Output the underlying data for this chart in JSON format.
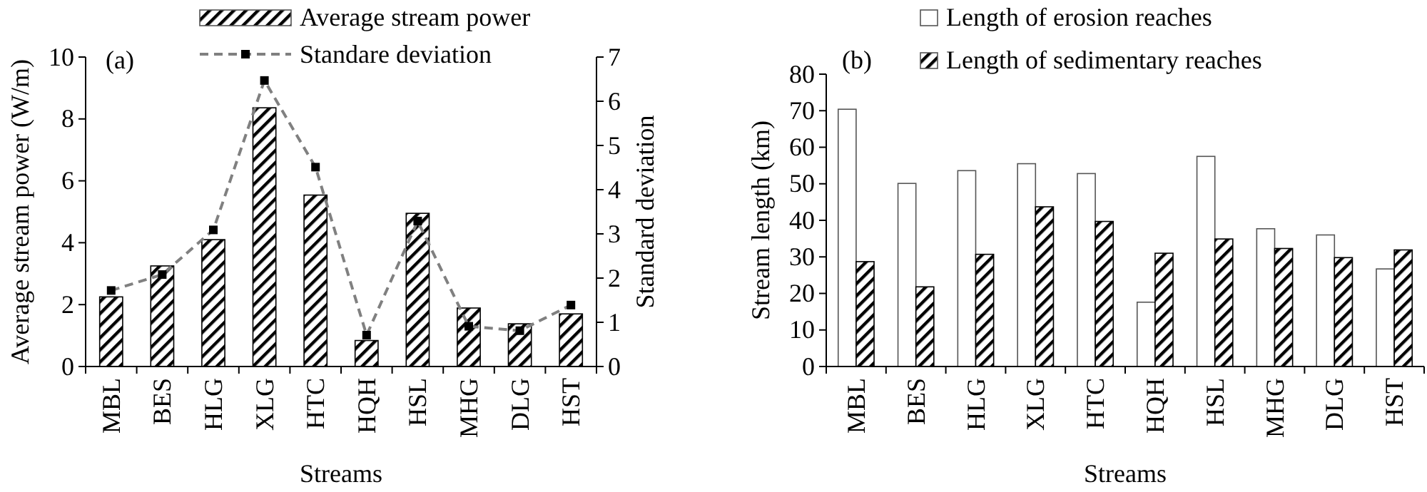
{
  "chart_data": [
    {
      "type": "bar",
      "xlabel": "Streams",
      "ylabel": "Average stream power (W/m)",
      "y2label": "Standard deviation",
      "annotations": [
        "(a)"
      ],
      "legend": "top",
      "categories": [
        "MBL",
        "BES",
        "HLG",
        "XLG",
        "HTC",
        "HQH",
        "HSL",
        "MHG",
        "DLG",
        "HST"
      ],
      "series": [
        {
          "name": "Average stream power",
          "type": "bar",
          "color": "#000000",
          "values": [
            2.25,
            3.25,
            4.1,
            8.36,
            5.54,
            0.84,
            4.95,
            1.89,
            1.38,
            1.7
          ]
        },
        {
          "name": "Standare deviation",
          "type": "line",
          "axis": "y2",
          "color": "#808080",
          "marker": "square",
          "line_style": "dashed",
          "values": [
            1.72,
            2.08,
            3.09,
            6.47,
            4.51,
            0.71,
            3.29,
            0.91,
            0.81,
            1.39
          ]
        }
      ],
      "ylim": [
        0,
        10
      ],
      "yticks": [
        0,
        2,
        4,
        6,
        8,
        10
      ],
      "y2lim": [
        0,
        7
      ],
      "y2ticks": [
        0,
        1,
        2,
        3,
        4,
        5,
        6,
        7
      ]
    },
    {
      "type": "bar",
      "xlabel": "Streams",
      "ylabel": "Stream length (km)",
      "annotations": [
        "(b)"
      ],
      "legend": "top",
      "categories": [
        "MBL",
        "BES",
        "HLG",
        "XLG",
        "HTC",
        "HQH",
        "HSL",
        "MHG",
        "DLG",
        "HST"
      ],
      "series": [
        {
          "name": "Length of erosion reaches",
          "color": "#ffffff",
          "values": [
            70.4,
            50.1,
            53.6,
            55.5,
            52.8,
            17.6,
            57.5,
            37.7,
            36.0,
            26.7
          ]
        },
        {
          "name": "Length of sedimentary reaches",
          "color": "#000000",
          "values": [
            28.7,
            21.8,
            30.7,
            43.7,
            39.7,
            31.0,
            34.9,
            32.3,
            29.8,
            31.9
          ]
        }
      ],
      "ylim": [
        0,
        80
      ],
      "yticks": [
        0,
        10,
        20,
        30,
        40,
        50,
        60,
        70,
        80
      ]
    }
  ]
}
